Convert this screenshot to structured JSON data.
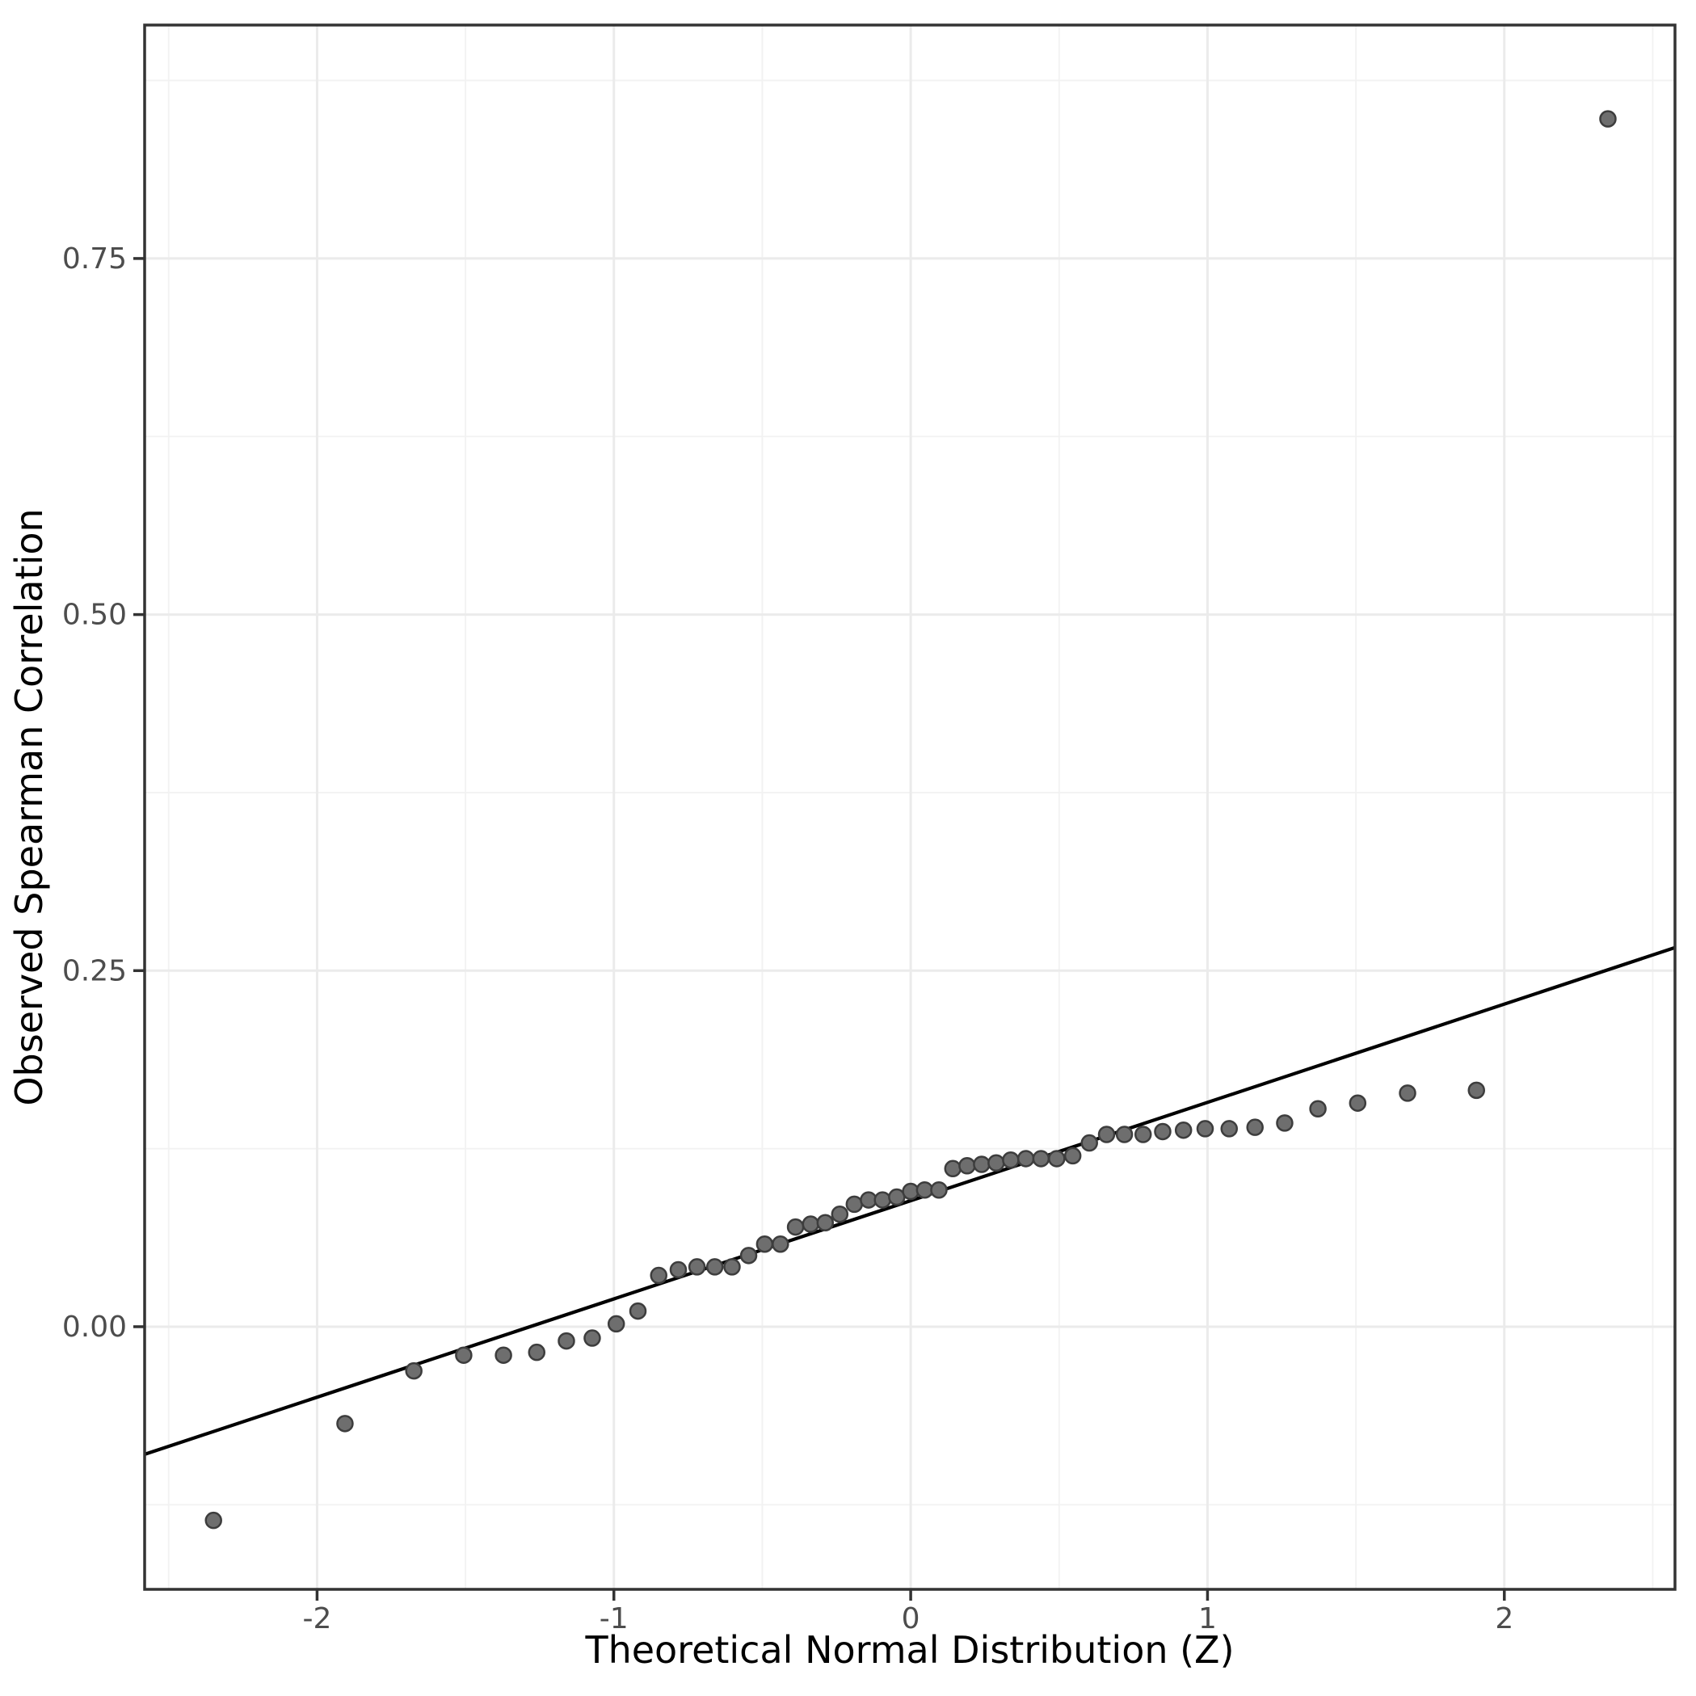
{
  "figure": {
    "background": "#ffffff",
    "panel_border_color": "#333333",
    "grid_major_color": "#ebebeb",
    "grid_minor_color": "#f2f2f2",
    "tick_mark_color": "#333333",
    "tick_label_color": "#4d4d4d",
    "axis_title_color": "#000000",
    "point_fill": "#6e6e6e",
    "point_stroke": "#3d3d3d",
    "reference_line_color": "#000000"
  },
  "chart_data": {
    "type": "scatter",
    "title": "",
    "xlabel": "Theoretical Normal Distribution (Z)",
    "ylabel": "Observed Spearman Correlation",
    "xlim": [
      -2.581,
      2.575
    ],
    "ylim": [
      -0.1844,
      0.9139
    ],
    "grid": "on",
    "legend": "none",
    "x_major_ticks": [
      -2,
      -1,
      0,
      1,
      2
    ],
    "x_tick_labels": [
      "-2",
      "-1",
      "0",
      "1",
      "2"
    ],
    "x_minor_ticks": [
      -2.5,
      -1.5,
      -0.5,
      0.5,
      1.5,
      2.5
    ],
    "y_major_ticks": [
      0.0,
      0.25,
      0.5,
      0.75
    ],
    "y_tick_labels": [
      "0.00",
      "0.25",
      "0.50",
      "0.75"
    ],
    "y_minor_ticks": [
      -0.125,
      0.125,
      0.375,
      0.625,
      0.875
    ],
    "points": [
      [
        -2.349,
        -0.136
      ],
      [
        -1.906,
        -0.068
      ],
      [
        -1.674,
        -0.031
      ],
      [
        -1.506,
        -0.02
      ],
      [
        -1.372,
        -0.02
      ],
      [
        -1.26,
        -0.018
      ],
      [
        -1.16,
        -0.01
      ],
      [
        -1.073,
        -0.008
      ],
      [
        -0.992,
        0.002
      ],
      [
        -0.919,
        0.011
      ],
      [
        -0.849,
        0.036
      ],
      [
        -0.783,
        0.04
      ],
      [
        -0.72,
        0.042
      ],
      [
        -0.66,
        0.042
      ],
      [
        -0.602,
        0.042
      ],
      [
        -0.546,
        0.05
      ],
      [
        -0.492,
        0.058
      ],
      [
        -0.439,
        0.058
      ],
      [
        -0.388,
        0.07
      ],
      [
        -0.337,
        0.072
      ],
      [
        -0.288,
        0.073
      ],
      [
        -0.239,
        0.079
      ],
      [
        -0.19,
        0.086
      ],
      [
        -0.142,
        0.089
      ],
      [
        -0.095,
        0.089
      ],
      [
        -0.047,
        0.091
      ],
      [
        0.0,
        0.095
      ],
      [
        0.047,
        0.096
      ],
      [
        0.095,
        0.096
      ],
      [
        0.142,
        0.111
      ],
      [
        0.19,
        0.113
      ],
      [
        0.239,
        0.114
      ],
      [
        0.288,
        0.115
      ],
      [
        0.337,
        0.117
      ],
      [
        0.388,
        0.118
      ],
      [
        0.439,
        0.118
      ],
      [
        0.492,
        0.118
      ],
      [
        0.546,
        0.12
      ],
      [
        0.602,
        0.129
      ],
      [
        0.66,
        0.135
      ],
      [
        0.72,
        0.135
      ],
      [
        0.783,
        0.135
      ],
      [
        0.849,
        0.137
      ],
      [
        0.919,
        0.138
      ],
      [
        0.992,
        0.139
      ],
      [
        1.073,
        0.139
      ],
      [
        1.16,
        0.14
      ],
      [
        1.26,
        0.143
      ],
      [
        1.372,
        0.153
      ],
      [
        1.506,
        0.157
      ],
      [
        1.674,
        0.164
      ],
      [
        1.906,
        0.166
      ],
      [
        2.349,
        0.848
      ]
    ],
    "reference_line": {
      "slope": 0.069,
      "intercept": 0.0885
    }
  }
}
